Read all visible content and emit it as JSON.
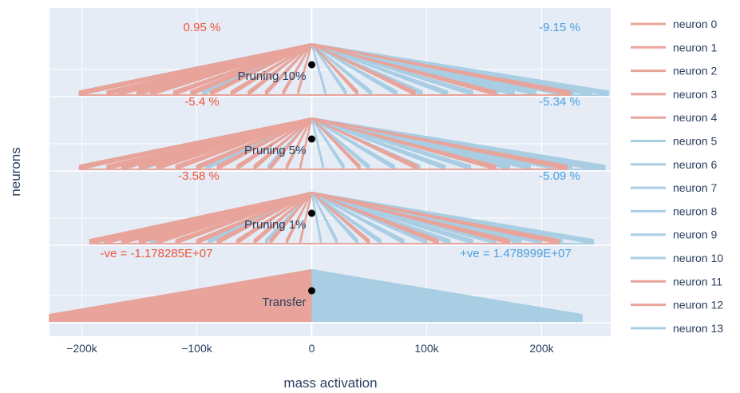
{
  "chart_data": {
    "type": "line",
    "xlabel": "mass activation",
    "ylabel": "neurons",
    "xlim": [
      -228000,
      262000
    ],
    "x_ticks": [
      {
        "value": -200000,
        "label": "−200k"
      },
      {
        "value": -100000,
        "label": "−100k"
      },
      {
        "value": 0,
        "label": "0"
      },
      {
        "value": 100000,
        "label": "100k"
      },
      {
        "value": 200000,
        "label": "200k"
      }
    ],
    "grid": true,
    "legend_position": "right",
    "colors": {
      "negative": "#e8a49a",
      "positive": "#a9cde3",
      "negative_text": "#ef553b",
      "positive_text": "#4a9fe0"
    },
    "series": [
      {
        "name": "neuron 0",
        "color": "#e8a49a"
      },
      {
        "name": "neuron 1",
        "color": "#e8a49a"
      },
      {
        "name": "neuron 2",
        "color": "#e8a49a"
      },
      {
        "name": "neuron 3",
        "color": "#e8a49a"
      },
      {
        "name": "neuron 4",
        "color": "#e8a49a"
      },
      {
        "name": "neuron 5",
        "color": "#a9cde3"
      },
      {
        "name": "neuron 6",
        "color": "#a9cde3"
      },
      {
        "name": "neuron 7",
        "color": "#a9cde3"
      },
      {
        "name": "neuron 8",
        "color": "#a9cde3"
      },
      {
        "name": "neuron 9",
        "color": "#a9cde3"
      },
      {
        "name": "neuron 10",
        "color": "#a9cde3"
      },
      {
        "name": "neuron 11",
        "color": "#e8a49a"
      },
      {
        "name": "neuron 12",
        "color": "#e8a49a"
      },
      {
        "name": "neuron 13",
        "color": "#a9cde3"
      }
    ],
    "panels": [
      {
        "label": "Pruning 10%",
        "neg_label": "0.95 %",
        "pos_label": "-9.15 %",
        "neg_ends": [
          -202000,
          -178000,
          -168000,
          -152000,
          -140000,
          -120000,
          -105000,
          -88000,
          -70000,
          -55000,
          -40000,
          -25000,
          -12000
        ],
        "pos_ends": [
          258000,
          243000,
          228000,
          218000,
          195000,
          176000,
          162000,
          140000,
          118000,
          96000,
          74000,
          52000,
          30000,
          12000
        ],
        "red_pos_ends": [
          225000,
          160000,
          90000,
          40000
        ],
        "blue_neg_ends": [
          -202000,
          -150000,
          -95000,
          -40000
        ]
      },
      {
        "label": "Pruning 5%",
        "neg_label": "-5.4 %",
        "pos_label": "-5.34 %",
        "neg_ends": [
          -202000,
          -178000,
          -165000,
          -150000,
          -135000,
          -118000,
          -100000,
          -82000,
          -65000,
          -50000,
          -36000,
          -22000,
          -10000
        ],
        "pos_ends": [
          255000,
          245000,
          226000,
          212000,
          190000,
          172000,
          160000,
          138000,
          116000,
          94000,
          72000,
          50000,
          28000,
          10000
        ],
        "red_pos_ends": [
          222000,
          160000,
          92000,
          42000
        ],
        "blue_neg_ends": [
          -202000,
          -148000,
          -92000,
          -38000
        ]
      },
      {
        "label": "Pruning 1%",
        "neg_label": "-3.58 %",
        "pos_label": "-5.09 %",
        "neg_ends": [
          -193000,
          -180000,
          -165000,
          -150000,
          -135000,
          -118000,
          -100000,
          -82000,
          -65000,
          -50000,
          -36000,
          -22000,
          -10000
        ],
        "pos_ends": [
          245000,
          218000,
          200000,
          182000,
          172000,
          160000,
          140000,
          120000,
          100000,
          80000,
          60000,
          40000,
          22000,
          8000
        ],
        "red_pos_ends": [
          215000,
          172000,
          110000,
          50000
        ],
        "blue_neg_ends": [
          -190000,
          -140000,
          -90000,
          -40000
        ]
      },
      {
        "label": "Transfer",
        "neg_label": "-ve = -1.178285E+07",
        "pos_label": "+ve = 1.478999E+07",
        "neg_ends": [
          -228000,
          -200000,
          -178000,
          -160000,
          -140000,
          -120000,
          -100000,
          -80000,
          -60000,
          -40000,
          -20000
        ],
        "pos_ends": [
          235000,
          220000,
          200000,
          180000,
          160000,
          140000,
          120000,
          100000,
          80000,
          60000,
          40000,
          20000
        ],
        "red_pos_ends": [],
        "blue_neg_ends": []
      }
    ]
  }
}
